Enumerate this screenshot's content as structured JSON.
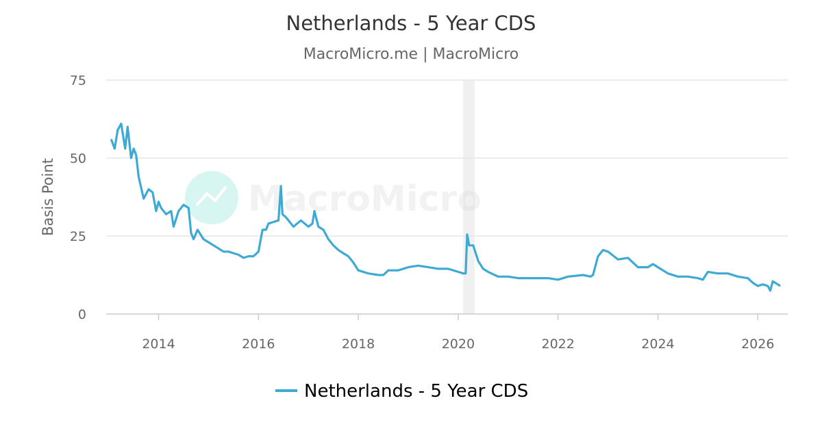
{
  "chart_data": {
    "type": "line",
    "title": "Netherlands - 5 Year CDS",
    "subtitle": "MacroMicro.me | MacroMicro",
    "ylabel": "Basis Point",
    "xlabel": "",
    "ylim": [
      0,
      75
    ],
    "y_ticks": [
      "0",
      "25",
      "50",
      "75"
    ],
    "x_ticks": [
      "2014",
      "2016",
      "2018",
      "2020",
      "2022",
      "2024",
      "2026"
    ],
    "xlim": [
      2012.95,
      2026.6
    ],
    "grid": true,
    "legend_position": "bottom-center",
    "watermark": "MacroMicro",
    "shaded_period": {
      "start": 2020.1,
      "end": 2020.33
    },
    "colors": {
      "series": "#3eaad4",
      "shade": "#f0f0f0",
      "grid": "#e6e6e6"
    },
    "series": [
      {
        "name": "Netherlands - 5 Year CDS",
        "x": [
          2013.05,
          2013.12,
          2013.18,
          2013.25,
          2013.33,
          2013.38,
          2013.45,
          2013.5,
          2013.55,
          2013.6,
          2013.7,
          2013.8,
          2013.88,
          2013.95,
          2014.0,
          2014.05,
          2014.15,
          2014.25,
          2014.3,
          2014.4,
          2014.5,
          2014.6,
          2014.65,
          2014.7,
          2014.78,
          2014.82,
          2014.9,
          2015.0,
          2015.1,
          2015.2,
          2015.3,
          2015.4,
          2015.5,
          2015.6,
          2015.7,
          2015.8,
          2015.9,
          2016.0,
          2016.08,
          2016.15,
          2016.2,
          2016.3,
          2016.4,
          2016.45,
          2016.48,
          2016.55,
          2016.7,
          2016.85,
          2017.0,
          2017.08,
          2017.12,
          2017.2,
          2017.3,
          2017.4,
          2017.5,
          2017.6,
          2017.7,
          2017.8,
          2017.9,
          2018.0,
          2018.2,
          2018.4,
          2018.5,
          2018.6,
          2018.8,
          2019.0,
          2019.2,
          2019.4,
          2019.6,
          2019.8,
          2020.0,
          2020.1,
          2020.15,
          2020.18,
          2020.22,
          2020.3,
          2020.4,
          2020.5,
          2020.6,
          2020.8,
          2021.0,
          2021.2,
          2021.5,
          2021.8,
          2022.0,
          2022.2,
          2022.5,
          2022.65,
          2022.7,
          2022.8,
          2022.9,
          2023.0,
          2023.2,
          2023.4,
          2023.6,
          2023.8,
          2023.9,
          2024.0,
          2024.2,
          2024.4,
          2024.6,
          2024.8,
          2024.9,
          2025.0,
          2025.2,
          2025.4,
          2025.6,
          2025.8,
          2025.9,
          2026.0,
          2026.1,
          2026.2,
          2026.25,
          2026.3,
          2026.4,
          2026.45
        ],
        "y": [
          56,
          53,
          59,
          61,
          53,
          60,
          50,
          53,
          51,
          44,
          37,
          40,
          39,
          33,
          36,
          34,
          32,
          33,
          28,
          33,
          35,
          34,
          26,
          24,
          27,
          26,
          24,
          23,
          22,
          21,
          20,
          20,
          19.5,
          19,
          18,
          18.5,
          18.5,
          20,
          27,
          27,
          29,
          29.5,
          30,
          41,
          32,
          31,
          28,
          30,
          28,
          29,
          33,
          28,
          27,
          24,
          22,
          20.5,
          19.5,
          18.5,
          16.5,
          14,
          13,
          12.5,
          12.5,
          14,
          14,
          15,
          15.5,
          15,
          14.5,
          14.5,
          13.5,
          13,
          13,
          25.5,
          22,
          22,
          17,
          14.5,
          13.5,
          12,
          12,
          11.5,
          11.5,
          11.5,
          11,
          12,
          12.5,
          12,
          12.5,
          18.5,
          20.5,
          20,
          17.5,
          18,
          15,
          15,
          16,
          15,
          13,
          12,
          12,
          11.5,
          11,
          13.5,
          13,
          13,
          12,
          11.5,
          10,
          9,
          9.5,
          9,
          7.5,
          10.5,
          9.5,
          9
        ]
      }
    ]
  }
}
